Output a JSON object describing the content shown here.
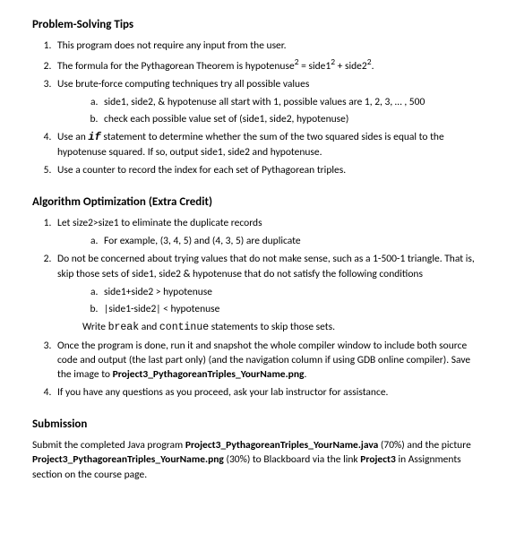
{
  "section1": {
    "heading": "Problem-Solving Tips",
    "item1": "This program does not require any input from the user.",
    "item2_pre": "The formula for the Pythagorean Theorem is hypotenuse",
    "item2_mid": " = side1",
    "item2_mid2": " + side2",
    "item2_end": ".",
    "item3": "Use brute-force computing techniques try all possible values",
    "item3a": "side1, side2, & hypotenuse all start with 1, possible values are 1, 2, 3, … , 500",
    "item3b": "check each possible value set of (side1, side2, hypotenuse)",
    "item4_pre": "Use an ",
    "item4_if": "if",
    "item4_post": " statement to determine whether the sum of the two squared sides is equal to the hypotenuse squared. If so, output side1, side2 and hypotenuse.",
    "item5": "Use a counter to record the index for each set of Pythagorean triples."
  },
  "section2": {
    "heading": "Algorithm Optimization (Extra Credit)",
    "item1": "Let size2>size1 to eliminate the duplicate records",
    "item1a": "For example, (3, 4, 5) and (4, 3, 5) are duplicate",
    "item2": "Do not be concerned about trying values that do not make sense, such as a 1-500-1 triangle. That is, skip those sets of side1, side2 & hypotenuse that do not satisfy the following conditions",
    "item2a": "side1+side2 > hypotenuse",
    "item2b": "|side1-side2| < hypotenuse",
    "item2_follow_pre": "Write ",
    "item2_follow_break": "break",
    "item2_follow_mid": " and ",
    "item2_follow_cont": "continue",
    "item2_follow_post": " statements to skip those sets.",
    "item3_pre": "Once the program is done, run it and snapshot the whole compiler window to include both source code and output (the last part only) (and the navigation column if using GDB online compiler). Save the image to ",
    "item3_file": "Project3_PythagoreanTriples_YourName.png",
    "item3_post": ".",
    "item4": "If you have any questions as you proceed, ask your lab instructor for assistance."
  },
  "section3": {
    "heading": "Submission",
    "text_pre": "Submit the completed Java program ",
    "file_java": "Project3_PythagoreanTriples_YourName.java",
    "text_mid1": " (70%) and the picture ",
    "file_png": "Project3_PythagoreanTriples_YourName.png",
    "text_mid2": " (30%) to Blackboard via the link ",
    "link": "Project3",
    "text_post": " in Assignments section on the course page."
  }
}
